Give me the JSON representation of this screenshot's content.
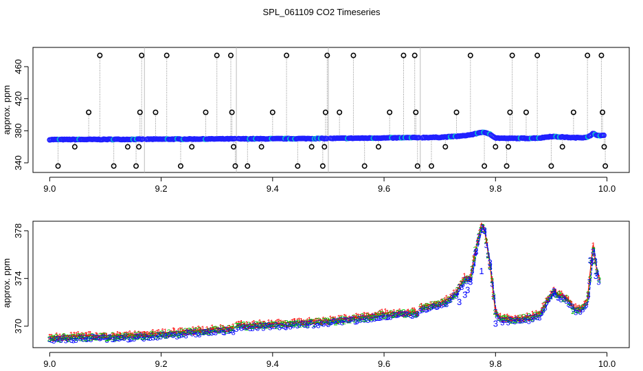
{
  "title": "SPL_061109  CO2 Timeseries",
  "chart_data": [
    {
      "type": "scatter",
      "ylabel": "approx. ppm",
      "xlim": [
        8.97,
        10.04
      ],
      "ylim": [
        328,
        484
      ],
      "x_ticks": [
        "9.0",
        "9.2",
        "9.4",
        "9.6",
        "9.8",
        "10.0"
      ],
      "x_tick_values": [
        9.0,
        9.2,
        9.4,
        9.6,
        9.8,
        10.0
      ],
      "y_ticks": [
        "340",
        "380",
        "420",
        "460"
      ],
      "y_tick_values": [
        340,
        380,
        420,
        460
      ],
      "grid": false,
      "gaps": [
        9.17,
        9.335,
        9.5,
        9.665
      ],
      "baseline": [
        [
          9.0,
          369.0
        ],
        [
          9.1,
          369.2
        ],
        [
          9.2,
          369.5
        ],
        [
          9.3,
          369.8
        ],
        [
          9.4,
          370.0
        ],
        [
          9.5,
          370.4
        ],
        [
          9.6,
          371.0
        ],
        [
          9.7,
          371.8
        ],
        [
          9.74,
          373.5
        ],
        [
          9.76,
          375.5
        ],
        [
          9.775,
          378.3
        ],
        [
          9.79,
          376.0
        ],
        [
          9.8,
          371.0
        ],
        [
          9.82,
          370.5
        ],
        [
          9.86,
          370.6
        ],
        [
          9.88,
          371.0
        ],
        [
          9.9,
          373.0
        ],
        [
          9.91,
          372.5
        ],
        [
          9.92,
          372.2
        ],
        [
          9.94,
          371.3
        ],
        [
          9.96,
          371.6
        ],
        [
          9.97,
          373.5
        ],
        [
          9.975,
          376.5
        ],
        [
          9.985,
          374.0
        ],
        [
          9.99,
          374.0
        ]
      ],
      "outliers": [
        [
          9.015,
          336
        ],
        [
          9.045,
          360
        ],
        [
          9.07,
          403
        ],
        [
          9.09,
          474
        ],
        [
          9.115,
          336
        ],
        [
          9.14,
          360
        ],
        [
          9.155,
          336
        ],
        [
          9.16,
          360
        ],
        [
          9.162,
          403
        ],
        [
          9.165,
          474
        ],
        [
          9.19,
          403
        ],
        [
          9.21,
          474
        ],
        [
          9.235,
          336
        ],
        [
          9.255,
          360
        ],
        [
          9.28,
          403
        ],
        [
          9.3,
          474
        ],
        [
          9.325,
          474
        ],
        [
          9.327,
          403
        ],
        [
          9.33,
          360
        ],
        [
          9.333,
          336
        ],
        [
          9.355,
          336
        ],
        [
          9.38,
          360
        ],
        [
          9.4,
          403
        ],
        [
          9.425,
          474
        ],
        [
          9.445,
          336
        ],
        [
          9.47,
          360
        ],
        [
          9.49,
          336
        ],
        [
          9.493,
          360
        ],
        [
          9.495,
          403
        ],
        [
          9.498,
          474
        ],
        [
          9.52,
          403
        ],
        [
          9.545,
          474
        ],
        [
          9.565,
          336
        ],
        [
          9.59,
          360
        ],
        [
          9.61,
          403
        ],
        [
          9.635,
          474
        ],
        [
          9.655,
          474
        ],
        [
          9.657,
          403
        ],
        [
          9.66,
          336
        ],
        [
          9.685,
          336
        ],
        [
          9.71,
          360
        ],
        [
          9.73,
          403
        ],
        [
          9.755,
          474
        ],
        [
          9.78,
          336
        ],
        [
          9.8,
          360
        ],
        [
          9.82,
          336
        ],
        [
          9.823,
          360
        ],
        [
          9.826,
          403
        ],
        [
          9.83,
          474
        ],
        [
          9.855,
          403
        ],
        [
          9.875,
          474
        ],
        [
          9.9,
          336
        ],
        [
          9.92,
          360
        ],
        [
          9.94,
          403
        ],
        [
          9.965,
          474
        ],
        [
          9.99,
          474
        ],
        [
          9.992,
          403
        ],
        [
          9.995,
          360
        ],
        [
          9.997,
          336
        ]
      ],
      "colors": {
        "baseline": "#2020ff",
        "outlier": "#000000",
        "spike": "#888888",
        "alt": "#00c8c8"
      }
    },
    {
      "type": "line",
      "ylabel": "approx. ppm",
      "xlim": [
        8.97,
        10.04
      ],
      "ylim": [
        368.2,
        378.8
      ],
      "x_ticks": [
        "9.0",
        "9.2",
        "9.4",
        "9.6",
        "9.8",
        "10.0"
      ],
      "x_tick_values": [
        9.0,
        9.2,
        9.4,
        9.6,
        9.8,
        10.0
      ],
      "y_ticks": [
        "370",
        "374",
        "378"
      ],
      "y_tick_values": [
        370,
        374,
        378
      ],
      "grid": false,
      "series_labels": [
        "1",
        "2",
        "3"
      ],
      "series_colors": [
        "#ff0000",
        "#00c000",
        "#0000ff"
      ],
      "segments": [
        [
          [
            9.0,
            369.0
          ],
          [
            9.05,
            369.1
          ],
          [
            9.1,
            369.1
          ],
          [
            9.17,
            369.2
          ]
        ],
        [
          [
            9.17,
            369.2
          ],
          [
            9.25,
            369.5
          ],
          [
            9.33,
            369.8
          ]
        ],
        [
          [
            9.335,
            370.0
          ],
          [
            9.4,
            370.1
          ],
          [
            9.5,
            370.4
          ]
        ],
        [
          [
            9.5,
            370.4
          ],
          [
            9.56,
            370.7
          ],
          [
            9.6,
            371.0
          ],
          [
            9.66,
            371.1
          ]
        ],
        [
          [
            9.665,
            371.5
          ],
          [
            9.71,
            372.0
          ],
          [
            9.73,
            372.8
          ],
          [
            9.745,
            374.0
          ],
          [
            9.755,
            374.0
          ],
          [
            9.765,
            376.5
          ],
          [
            9.775,
            378.5
          ],
          [
            9.78,
            378.0
          ],
          [
            9.79,
            375.0
          ],
          [
            9.8,
            371.0
          ],
          [
            9.81,
            370.6
          ],
          [
            9.82,
            370.6
          ],
          [
            9.84,
            370.6
          ],
          [
            9.86,
            370.7
          ],
          [
            9.88,
            371.0
          ],
          [
            9.895,
            372.3
          ],
          [
            9.905,
            373.0
          ],
          [
            9.91,
            372.6
          ],
          [
            9.92,
            372.5
          ],
          [
            9.93,
            372.2
          ],
          [
            9.94,
            371.4
          ],
          [
            9.955,
            371.5
          ],
          [
            9.965,
            372.2
          ],
          [
            9.97,
            374.5
          ],
          [
            9.975,
            376.7
          ],
          [
            9.98,
            375.0
          ],
          [
            9.985,
            374.0
          ]
        ]
      ],
      "glyph_overlay": [
        [
          9.78,
          378.0,
          "3"
        ],
        [
          9.765,
          376.2,
          "3"
        ],
        [
          9.79,
          375.3,
          "3"
        ],
        [
          9.775,
          374.6,
          "1"
        ],
        [
          9.755,
          373.7,
          "3"
        ],
        [
          9.75,
          373.0,
          "3"
        ],
        [
          9.745,
          372.6,
          "3"
        ],
        [
          9.735,
          372.0,
          "3"
        ],
        [
          9.97,
          375.5,
          "3"
        ],
        [
          9.98,
          374.2,
          "3"
        ],
        [
          9.905,
          372.9,
          "3"
        ],
        [
          9.8,
          370.2,
          "3"
        ]
      ]
    }
  ]
}
